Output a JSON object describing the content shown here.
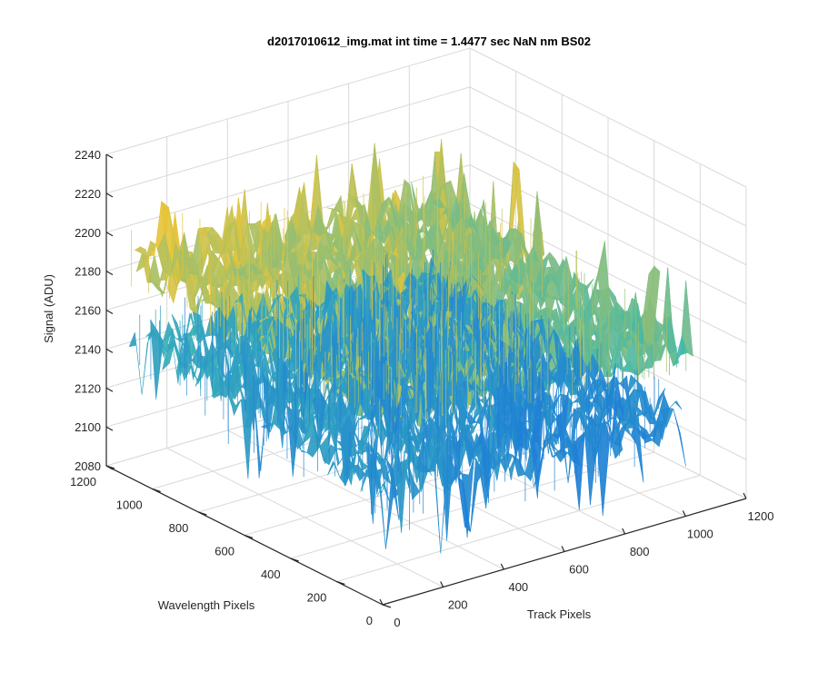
{
  "chart_data": {
    "type": "surface",
    "title": "d2017010612_img.mat int time = 1.4477 sec  NaN nm BS02",
    "xlabel": "Track Pixels",
    "ylabel": "Wavelength Pixels",
    "zlabel": "Signal (ADU)",
    "xlim": [
      0,
      1200
    ],
    "ylim": [
      0,
      1200
    ],
    "zlim": [
      2080,
      2240
    ],
    "xticks": [
      "0",
      "200",
      "400",
      "600",
      "800",
      "1000",
      "1200"
    ],
    "yticks": [
      "0",
      "200",
      "400",
      "600",
      "800",
      "1000",
      "1200"
    ],
    "zticks": [
      "2080",
      "2100",
      "2120",
      "2140",
      "2160",
      "2180",
      "2200",
      "2220",
      "2240"
    ],
    "grid": true,
    "colormap": "parula",
    "surface_extent": {
      "x": [
        0,
        1024
      ],
      "y": [
        0,
        1100
      ]
    },
    "signal_summary": {
      "typical_range": [
        2135,
        2190
      ],
      "min_spike": 2090,
      "max_spike": 2225
    },
    "colors": {
      "surface_low": "#1f80d6",
      "surface_mid": "#3cb8b0",
      "surface_high": "#e6c43a",
      "axis": "#262626",
      "grid": "#d9d9d9"
    }
  }
}
